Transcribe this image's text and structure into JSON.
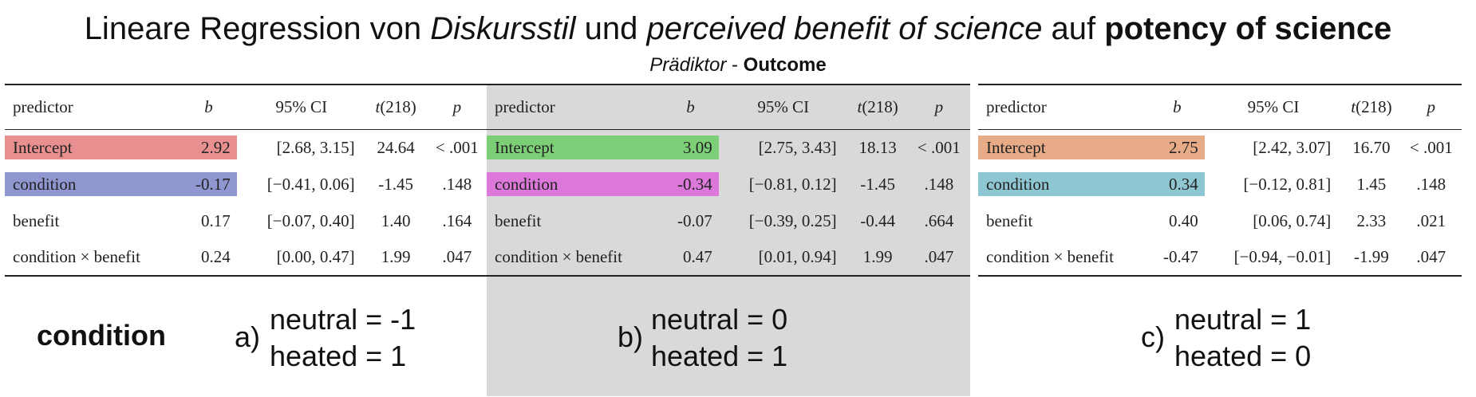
{
  "title": {
    "pre": "Lineare Regression von ",
    "var1": "Diskursstil",
    "mid": " und ",
    "var2": "perceived benefit of science",
    "post": " auf ",
    "outcome": "potency of science"
  },
  "subtitle": {
    "predictor": "Prädiktor",
    "sep": " - ",
    "outcome": "Outcome"
  },
  "colors": {
    "panel1_intercept": "#e89090",
    "panel1_condition": "#9096d0",
    "panel2_intercept": "#7ccf76",
    "panel2_condition": "#dd78db",
    "panel3_intercept": "#e7ab88",
    "panel3_condition": "#8ec7d2",
    "panel2_background": "#d9d9d9"
  },
  "headers": {
    "predictor": "predictor",
    "b": "b",
    "ci": "95% CI",
    "t": "t",
    "t_df": "(218)",
    "p": "p"
  },
  "panels": [
    {
      "rows": [
        {
          "predictor": "Intercept",
          "b": "2.92",
          "ci": "[2.68, 3.15]",
          "t": "24.64",
          "p": "< .001"
        },
        {
          "predictor": "condition",
          "b": "-0.17",
          "ci": "[−0.41, 0.06]",
          "t": "-1.45",
          "p": ".148"
        },
        {
          "predictor": "benefit",
          "b": "0.17",
          "ci": "[−0.07, 0.40]",
          "t": "1.40",
          "p": ".164"
        },
        {
          "predictor": "condition × benefit",
          "b": "0.24",
          "ci": "[0.00, 0.47]",
          "t": "1.99",
          "p": ".047"
        }
      ]
    },
    {
      "rows": [
        {
          "predictor": "Intercept",
          "b": "3.09",
          "ci": "[2.75, 3.43]",
          "t": "18.13",
          "p": "< .001"
        },
        {
          "predictor": "condition",
          "b": "-0.34",
          "ci": "[−0.81, 0.12]",
          "t": "-1.45",
          "p": ".148"
        },
        {
          "predictor": "benefit",
          "b": "-0.07",
          "ci": "[−0.39, 0.25]",
          "t": "-0.44",
          "p": ".664"
        },
        {
          "predictor": "condition × benefit",
          "b": "0.47",
          "ci": "[0.01, 0.94]",
          "t": "1.99",
          "p": ".047"
        }
      ]
    },
    {
      "rows": [
        {
          "predictor": "Intercept",
          "b": "2.75",
          "ci": "[2.42, 3.07]",
          "t": "16.70",
          "p": "< .001"
        },
        {
          "predictor": "condition",
          "b": "0.34",
          "ci": "[−0.12, 0.81]",
          "t": "1.45",
          "p": ".148"
        },
        {
          "predictor": "benefit",
          "b": "0.40",
          "ci": "[0.06, 0.74]",
          "t": "2.33",
          "p": ".021"
        },
        {
          "predictor": "condition × benefit",
          "b": "-0.47",
          "ci": "[−0.94, −0.01]",
          "t": "-1.99",
          "p": ".047"
        }
      ]
    }
  ],
  "condition_label": "condition",
  "codings": [
    {
      "letter": "a)",
      "line1": "neutral = -1",
      "line2": "heated = 1"
    },
    {
      "letter": "b)",
      "line1": "neutral = 0",
      "line2": "heated = 1"
    },
    {
      "letter": "c)",
      "line1": "neutral = 1",
      "line2": "heated = 0"
    }
  ]
}
